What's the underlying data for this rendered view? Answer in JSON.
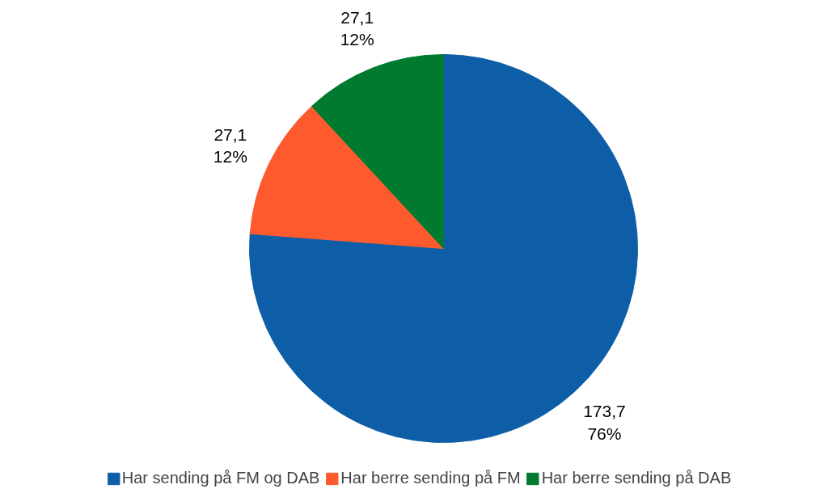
{
  "chart_data": {
    "type": "pie",
    "categories": [
      "Har sending på FM og DAB",
      "Har berre sending på FM",
      "Har berre sending på DAB"
    ],
    "values": [
      173.7,
      27.1,
      27.1
    ],
    "colors": [
      "#0e5ea7",
      "#ff5a2e",
      "#007a2f"
    ],
    "value_labels": [
      "173,7\n76%",
      "27,1\n12%",
      "27,1\n12%"
    ],
    "legend": "bottom"
  }
}
